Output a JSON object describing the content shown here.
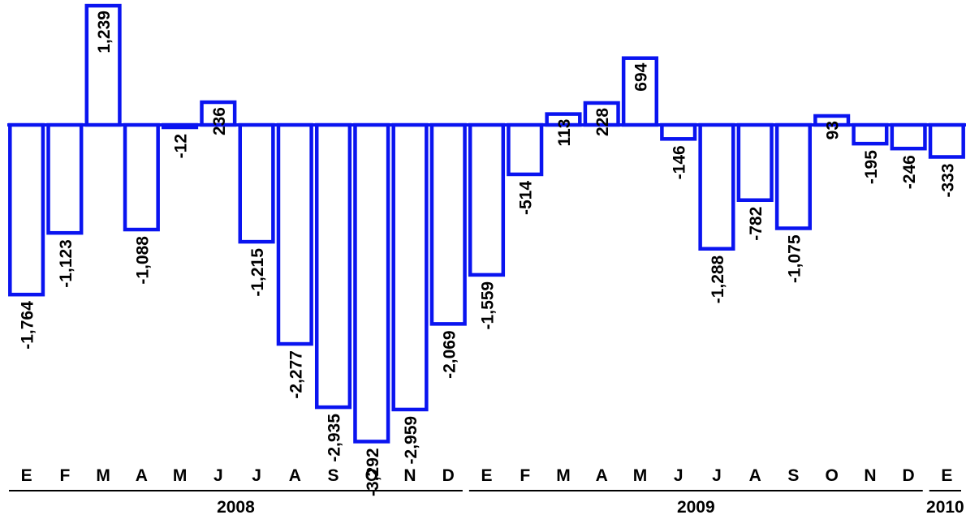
{
  "chart_data": {
    "type": "bar",
    "categories": [
      "E",
      "F",
      "M",
      "A",
      "M",
      "J",
      "J",
      "A",
      "S",
      "O",
      "N",
      "D",
      "E",
      "F",
      "M",
      "A",
      "M",
      "J",
      "J",
      "A",
      "S",
      "O",
      "N",
      "D",
      "E"
    ],
    "values": [
      -1764,
      -1123,
      1239,
      -1088,
      -12,
      236,
      -1215,
      -2277,
      -2935,
      -3292,
      -2959,
      -2069,
      -1559,
      -514,
      113,
      228,
      694,
      -146,
      -1288,
      -782,
      -1075,
      93,
      -195,
      -246,
      -333
    ],
    "labels": [
      "-1,764",
      "-1,123",
      "1,239",
      "-1,088",
      "-12",
      "236",
      "-1,215",
      "-2,277",
      "-2,935",
      "-3,292",
      "-2,959",
      "-2,069",
      "-1,559",
      "-514",
      "113",
      "228",
      "694",
      "-146",
      "-1,288",
      "-782",
      "-1,075",
      "93",
      "-195",
      "-246",
      "-333"
    ],
    "years": [
      {
        "label": "2008",
        "start": 0,
        "end": 11
      },
      {
        "label": "2009",
        "start": 12,
        "end": 23
      },
      {
        "label": "2010",
        "start": 24,
        "end": 24
      }
    ],
    "ylim": [
      -3400,
      1300
    ],
    "grid": false,
    "legend": "none",
    "bar_color": "#0a14f0",
    "title": "",
    "xlabel": "",
    "ylabel": ""
  }
}
